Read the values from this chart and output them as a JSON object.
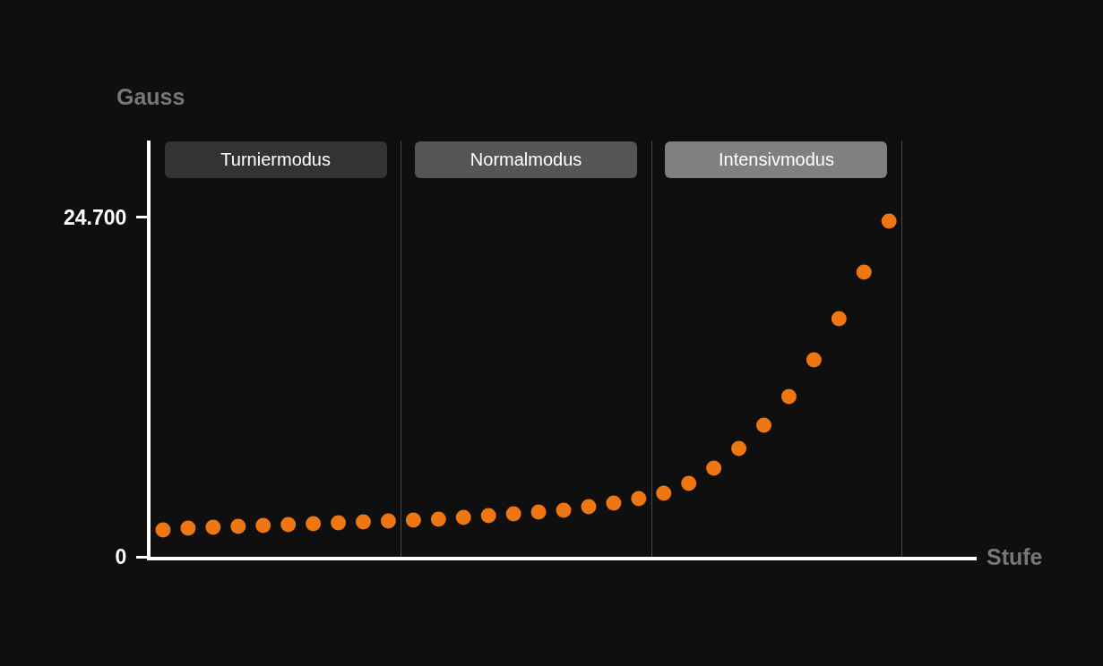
{
  "chart_data": {
    "type": "scatter",
    "xlabel": "Stufe",
    "ylabel": "Gauss",
    "categories": [
      null,
      null,
      null,
      null,
      null,
      null,
      null,
      null,
      null,
      null,
      null,
      null,
      null,
      null,
      null,
      null,
      null,
      null,
      null,
      null,
      null,
      null,
      null,
      null,
      null,
      null,
      null,
      null,
      null,
      null,
      null,
      null,
      null
    ],
    "series": [
      {
        "color": "#ee7711",
        "values": [
          1960,
          2090,
          2150,
          2220,
          2280,
          2350,
          2410,
          2480,
          2540,
          2610,
          2670,
          2740,
          2870,
          3000,
          3130,
          3260,
          3390,
          3650,
          3910,
          4240,
          4630,
          5340,
          6450,
          7890,
          9580,
          11670,
          14340,
          17340,
          20720,
          24440,
          null,
          null,
          null
        ]
      }
    ],
    "ylim": [
      0,
      30300
    ],
    "yticks": [
      0,
      {
        "value": 24700,
        "label": "24.700"
      }
    ],
    "tick_labels": "y",
    "grid": false,
    "marker": "circle",
    "annotations": [
      "Turniermodus",
      "Normalmodus",
      "Intensivmodus"
    ]
  }
}
